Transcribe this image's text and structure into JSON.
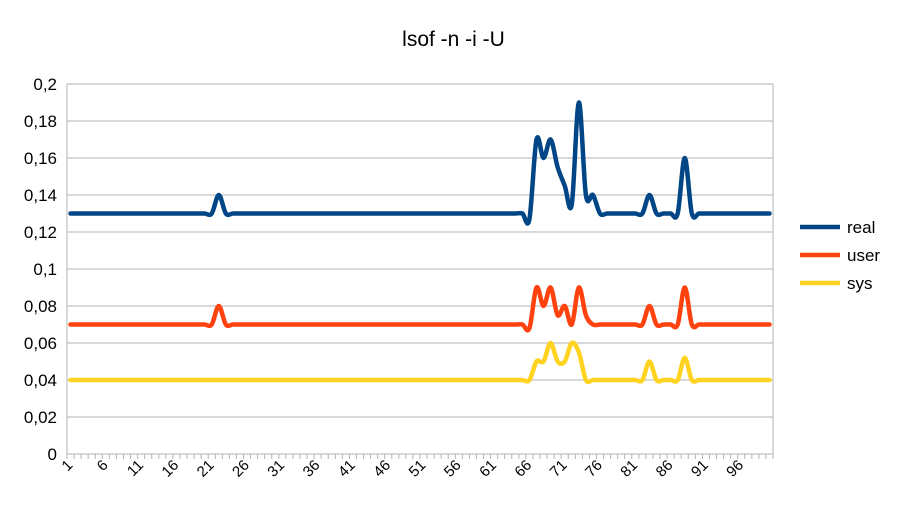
{
  "chart_data": {
    "type": "line",
    "title": "lsof -n -i -U",
    "xlabel": "",
    "ylabel": "",
    "ylim": [
      0,
      0.2
    ],
    "y_ticks": [
      "0",
      "0,02",
      "0,04",
      "0,06",
      "0,08",
      "0,1",
      "0,12",
      "0,14",
      "0,16",
      "0,18",
      "0,2"
    ],
    "x_tick_labels": [
      "1",
      "6",
      "11",
      "16",
      "21",
      "26",
      "31",
      "36",
      "41",
      "46",
      "51",
      "56",
      "61",
      "66",
      "71",
      "76",
      "81",
      "86",
      "91",
      "96"
    ],
    "x_count": 100,
    "grid": true,
    "legend_position": "right",
    "series": [
      {
        "name": "real",
        "color": "#004586",
        "values": [
          0.13,
          0.13,
          0.13,
          0.13,
          0.13,
          0.13,
          0.13,
          0.13,
          0.13,
          0.13,
          0.13,
          0.13,
          0.13,
          0.13,
          0.13,
          0.13,
          0.13,
          0.13,
          0.13,
          0.13,
          0.13,
          0.14,
          0.13,
          0.13,
          0.13,
          0.13,
          0.13,
          0.13,
          0.13,
          0.13,
          0.13,
          0.13,
          0.13,
          0.13,
          0.13,
          0.13,
          0.13,
          0.13,
          0.13,
          0.13,
          0.13,
          0.13,
          0.13,
          0.13,
          0.13,
          0.13,
          0.13,
          0.13,
          0.13,
          0.13,
          0.13,
          0.13,
          0.13,
          0.13,
          0.13,
          0.13,
          0.13,
          0.13,
          0.13,
          0.13,
          0.13,
          0.13,
          0.13,
          0.13,
          0.13,
          0.127,
          0.17,
          0.16,
          0.17,
          0.155,
          0.145,
          0.135,
          0.19,
          0.14,
          0.14,
          0.13,
          0.13,
          0.13,
          0.13,
          0.13,
          0.13,
          0.13,
          0.14,
          0.13,
          0.13,
          0.13,
          0.13,
          0.16,
          0.13,
          0.13,
          0.13,
          0.13,
          0.13,
          0.13,
          0.13,
          0.13,
          0.13,
          0.13,
          0.13,
          0.13
        ]
      },
      {
        "name": "user",
        "color": "#ff420e",
        "values": [
          0.07,
          0.07,
          0.07,
          0.07,
          0.07,
          0.07,
          0.07,
          0.07,
          0.07,
          0.07,
          0.07,
          0.07,
          0.07,
          0.07,
          0.07,
          0.07,
          0.07,
          0.07,
          0.07,
          0.07,
          0.07,
          0.08,
          0.07,
          0.07,
          0.07,
          0.07,
          0.07,
          0.07,
          0.07,
          0.07,
          0.07,
          0.07,
          0.07,
          0.07,
          0.07,
          0.07,
          0.07,
          0.07,
          0.07,
          0.07,
          0.07,
          0.07,
          0.07,
          0.07,
          0.07,
          0.07,
          0.07,
          0.07,
          0.07,
          0.07,
          0.07,
          0.07,
          0.07,
          0.07,
          0.07,
          0.07,
          0.07,
          0.07,
          0.07,
          0.07,
          0.07,
          0.07,
          0.07,
          0.07,
          0.07,
          0.068,
          0.09,
          0.08,
          0.09,
          0.075,
          0.08,
          0.07,
          0.09,
          0.075,
          0.07,
          0.07,
          0.07,
          0.07,
          0.07,
          0.07,
          0.07,
          0.07,
          0.08,
          0.07,
          0.07,
          0.07,
          0.07,
          0.09,
          0.07,
          0.07,
          0.07,
          0.07,
          0.07,
          0.07,
          0.07,
          0.07,
          0.07,
          0.07,
          0.07,
          0.07
        ]
      },
      {
        "name": "sys",
        "color": "#ffd320",
        "values": [
          0.04,
          0.04,
          0.04,
          0.04,
          0.04,
          0.04,
          0.04,
          0.04,
          0.04,
          0.04,
          0.04,
          0.04,
          0.04,
          0.04,
          0.04,
          0.04,
          0.04,
          0.04,
          0.04,
          0.04,
          0.04,
          0.04,
          0.04,
          0.04,
          0.04,
          0.04,
          0.04,
          0.04,
          0.04,
          0.04,
          0.04,
          0.04,
          0.04,
          0.04,
          0.04,
          0.04,
          0.04,
          0.04,
          0.04,
          0.04,
          0.04,
          0.04,
          0.04,
          0.04,
          0.04,
          0.04,
          0.04,
          0.04,
          0.04,
          0.04,
          0.04,
          0.04,
          0.04,
          0.04,
          0.04,
          0.04,
          0.04,
          0.04,
          0.04,
          0.04,
          0.04,
          0.04,
          0.04,
          0.04,
          0.04,
          0.04,
          0.05,
          0.05,
          0.06,
          0.05,
          0.05,
          0.06,
          0.055,
          0.04,
          0.04,
          0.04,
          0.04,
          0.04,
          0.04,
          0.04,
          0.04,
          0.04,
          0.05,
          0.04,
          0.04,
          0.04,
          0.04,
          0.052,
          0.04,
          0.04,
          0.04,
          0.04,
          0.04,
          0.04,
          0.04,
          0.04,
          0.04,
          0.04,
          0.04,
          0.04
        ]
      }
    ]
  }
}
